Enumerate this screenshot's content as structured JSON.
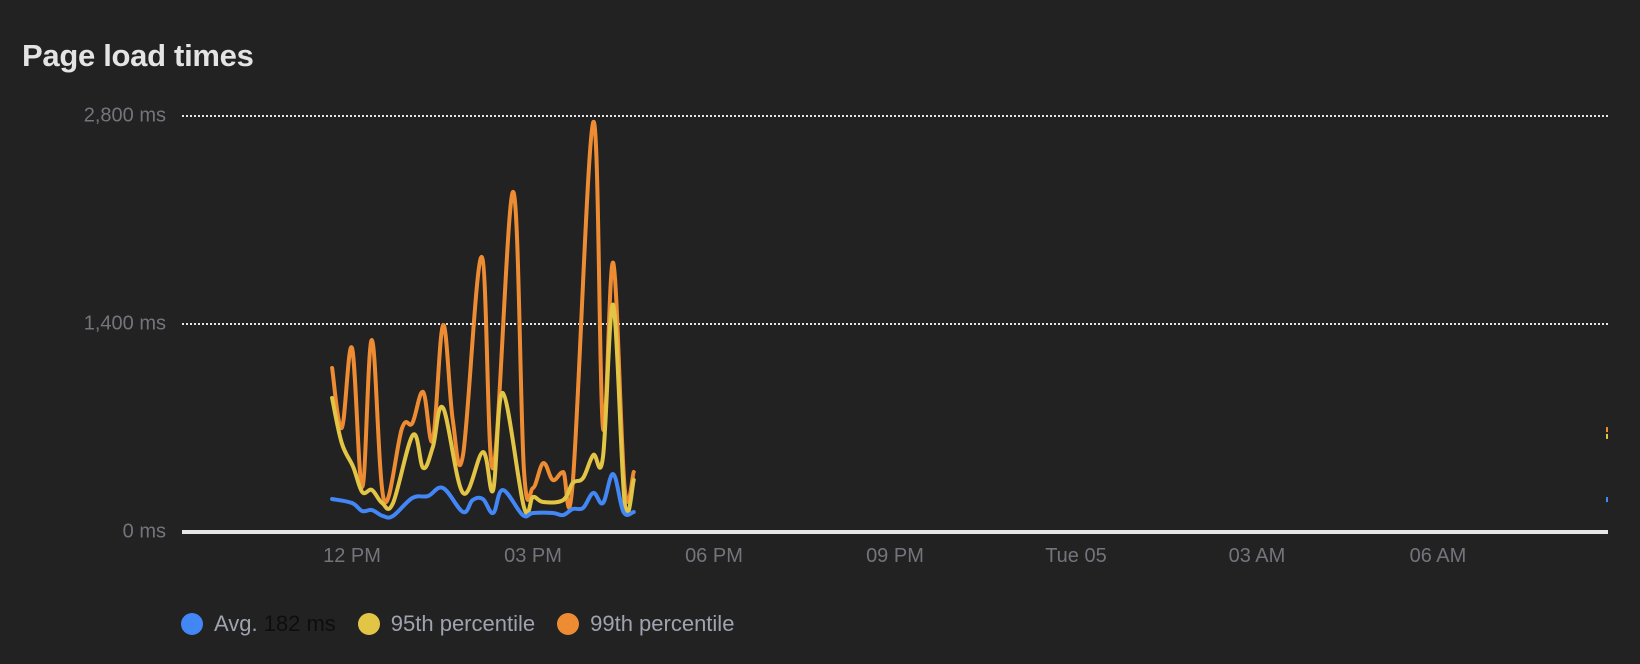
{
  "title": "Page load times",
  "colors": {
    "background": "#222222",
    "avg": "#4287f5",
    "p95": "#e3c546",
    "p99": "#ee8c34",
    "grid": "#e6e6e6",
    "axis_text": "#74747c"
  },
  "y_axis": {
    "ticks": [
      {
        "value": 2800,
        "label": "2,800 ms"
      },
      {
        "value": 1400,
        "label": "1,400 ms"
      },
      {
        "value": 0,
        "label": "0 ms"
      }
    ]
  },
  "x_axis": {
    "ticks": [
      {
        "h": 0,
        "label": "12 PM"
      },
      {
        "h": 3,
        "label": "03 PM"
      },
      {
        "h": 6,
        "label": "06 PM"
      },
      {
        "h": 9,
        "label": "09 PM"
      },
      {
        "h": 12,
        "label": "Tue 05"
      },
      {
        "h": 15,
        "label": "03 AM"
      },
      {
        "h": 18,
        "label": "06 AM"
      }
    ]
  },
  "legend": {
    "avg": {
      "label": "Avg.",
      "value": "182 ms"
    },
    "p95": {
      "label": "95th percentile"
    },
    "p99": {
      "label": "99th percentile"
    }
  },
  "chart_data": {
    "type": "line",
    "title": "Page load times",
    "xlabel": "",
    "ylabel": "",
    "x_unit": "hours since 12 PM",
    "ylim": [
      0,
      2800
    ],
    "xlim": [
      -2.95,
      19.95
    ],
    "grid": true,
    "legend_position": "bottom",
    "x_tick_labels": [
      "12 PM",
      "03 PM",
      "06 PM",
      "09 PM",
      "Tue 05",
      "03 AM",
      "06 AM"
    ],
    "y_tick_labels": [
      "0 ms",
      "1,400 ms",
      "2,800 ms"
    ],
    "series": [
      {
        "name": "99th percentile",
        "key": "p99",
        "points": [
          [
            -0.33,
            1104
          ],
          [
            -0.17,
            700
          ],
          [
            0,
            1238
          ],
          [
            0.17,
            303
          ],
          [
            0.33,
            1292
          ],
          [
            0.53,
            215
          ],
          [
            0.83,
            700
          ],
          [
            1.0,
            733
          ],
          [
            1.18,
            942
          ],
          [
            1.34,
            619
          ],
          [
            1.51,
            1393
          ],
          [
            1.67,
            754
          ],
          [
            1.84,
            518
          ],
          [
            2.15,
            1851
          ],
          [
            2.34,
            431
          ],
          [
            2.67,
            2289
          ],
          [
            2.85,
            417
          ],
          [
            3.0,
            296
          ],
          [
            3.17,
            464
          ],
          [
            3.33,
            350
          ],
          [
            3.5,
            404
          ],
          [
            3.66,
            337
          ],
          [
            4.0,
            2760
          ],
          [
            4.16,
            700
          ],
          [
            4.33,
            1811
          ],
          [
            4.52,
            296
          ],
          [
            4.67,
            404
          ]
        ],
        "edge_point": [
          19.7,
          686
        ]
      },
      {
        "name": "95th percentile",
        "key": "p95",
        "points": [
          [
            -0.33,
            902
          ],
          [
            -0.17,
            599
          ],
          [
            0.02,
            438
          ],
          [
            0.17,
            269
          ],
          [
            0.33,
            283
          ],
          [
            0.5,
            195
          ],
          [
            0.68,
            195
          ],
          [
            1.01,
            653
          ],
          [
            1.18,
            431
          ],
          [
            1.34,
            572
          ],
          [
            1.51,
            835
          ],
          [
            1.84,
            263
          ],
          [
            2.17,
            538
          ],
          [
            2.34,
            283
          ],
          [
            2.5,
            936
          ],
          [
            2.85,
            168
          ],
          [
            3.0,
            236
          ],
          [
            3.17,
            202
          ],
          [
            3.5,
            215
          ],
          [
            3.66,
            330
          ],
          [
            3.83,
            363
          ],
          [
            4.0,
            518
          ],
          [
            4.16,
            505
          ],
          [
            4.33,
            1528
          ],
          [
            4.52,
            195
          ],
          [
            4.67,
            350
          ]
        ],
        "edge_point": [
          19.7,
          640
        ]
      },
      {
        "name": "Avg. 182 ms",
        "key": "avg",
        "points": [
          [
            -0.33,
            222
          ],
          [
            0,
            195
          ],
          [
            0.17,
            141
          ],
          [
            0.33,
            148
          ],
          [
            0.51,
            108
          ],
          [
            0.68,
            108
          ],
          [
            1.0,
            229
          ],
          [
            1.26,
            242
          ],
          [
            1.51,
            296
          ],
          [
            1.84,
            135
          ],
          [
            2.0,
            215
          ],
          [
            2.17,
            222
          ],
          [
            2.34,
            128
          ],
          [
            2.5,
            283
          ],
          [
            2.83,
            114
          ],
          [
            3.0,
            128
          ],
          [
            3.33,
            128
          ],
          [
            3.5,
            114
          ],
          [
            3.66,
            155
          ],
          [
            3.83,
            162
          ],
          [
            4.0,
            263
          ],
          [
            4.16,
            195
          ],
          [
            4.33,
            390
          ],
          [
            4.5,
            135
          ],
          [
            4.67,
            135
          ]
        ],
        "edge_point": [
          19.7,
          215
        ]
      }
    ]
  }
}
